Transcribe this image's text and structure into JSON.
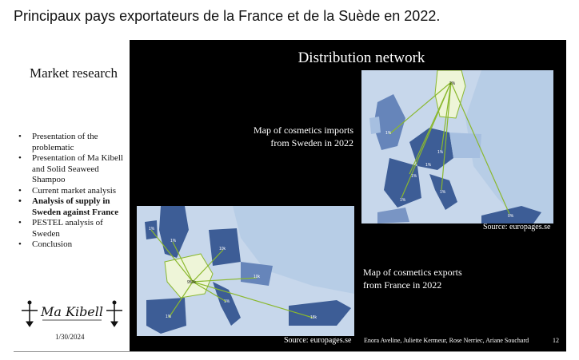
{
  "page_title": "Principaux pays exportateurs de la France et de la Suède en 2022.",
  "sidebar": {
    "title": "Market research",
    "items": [
      {
        "label": "Presentation of the problematic",
        "bold": false
      },
      {
        "label": "Presentation of Ma Kibell and Solid Seaweed Shampoo",
        "bold": false
      },
      {
        "label": "Current market analysis",
        "bold": false
      },
      {
        "label": "Analysis of supply in Sweden against France",
        "bold": true
      },
      {
        "label": "PESTEL analysis of Sweden",
        "bold": false
      },
      {
        "label": "Conclusion",
        "bold": false
      }
    ],
    "logo_text": "Ma Kibell",
    "date": "1/30/2024"
  },
  "slide": {
    "title": "Distribution network",
    "import_caption_line1": "Map of cosmetics imports",
    "import_caption_line2": "from Sweden in 2022",
    "export_caption_line1": "Map of cosmetics exports",
    "export_caption_line2": "from France in 2022",
    "source_top": "Source: europages.se",
    "source_bottom": "Source: europages.se",
    "authors": "Enora Aveline, Juliette Kermeur, Rose Nerriec, Ariane Souchard",
    "page_number": "12"
  },
  "maps": {
    "sweden": {
      "origin_label": "2%",
      "labels": [
        "1%",
        "1%",
        "1%",
        "1%",
        "1%",
        "0%",
        "1%"
      ]
    },
    "france": {
      "origin_label": "950k",
      "labels": [
        "1%",
        "10k",
        "1%",
        "1%",
        "10k",
        "1%",
        "18k"
      ]
    }
  },
  "colors": {
    "slide_bg": "#000000",
    "sea": "#c7d7eb",
    "land_light": "#b7cde6",
    "land_dark": "#3d5d96",
    "origin": "#eef5d8",
    "route": "#8ab82e"
  }
}
